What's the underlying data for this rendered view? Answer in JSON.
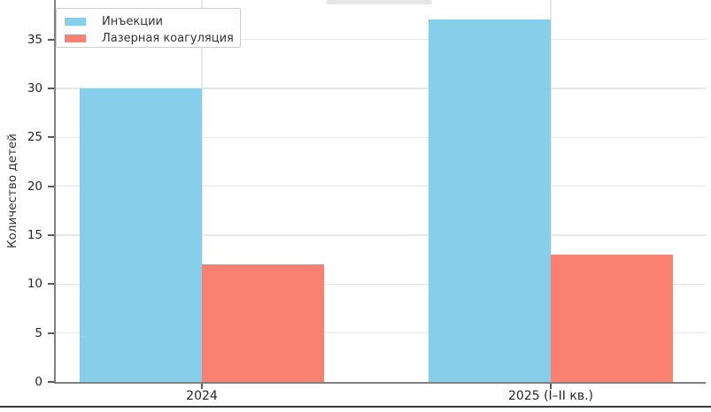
{
  "chart_data": {
    "type": "bar",
    "title": "",
    "categories": [
      "2024",
      "2025 (I–II кв.)"
    ],
    "series": [
      {
        "name": "Инъекции",
        "color": "#87CEEB",
        "values": [
          30,
          37
        ]
      },
      {
        "name": "Лазерная коагуляция",
        "color": "#FA8072",
        "values": [
          12,
          13
        ]
      }
    ],
    "xlabel": "",
    "ylabel": "Количество детей",
    "yticks": [
      0,
      5,
      10,
      15,
      20,
      25,
      30,
      35
    ],
    "ylim": [
      0,
      39
    ],
    "grid": true,
    "legend_position": "upper-left",
    "colors": {
      "grid": "#e7e7e7",
      "spine": "#808080",
      "tick_text": "#262626",
      "legend_border": "#cccccc",
      "background": "#ffffff"
    }
  }
}
